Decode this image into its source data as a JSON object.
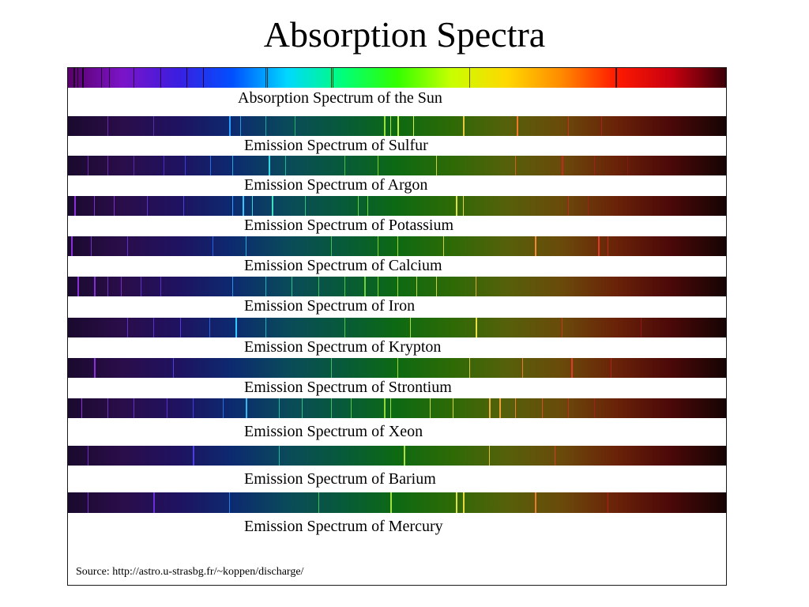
{
  "title": "Absorption Spectra",
  "source": "Source: http://astro.u-strasbg.fr/~koppen/discharge/",
  "palette": {
    "sun": [
      "#5a006a",
      "#7b14c8",
      "#3b1ee0",
      "#0050ff",
      "#00d8ff",
      "#00ff7a",
      "#32ff00",
      "#c8ff00",
      "#ffd800",
      "#ff8a00",
      "#ff1a00",
      "#c80010",
      "#3a0008"
    ],
    "emission": [
      "#1a0a2e",
      "#2a0d4a",
      "#1f1260",
      "#0c2a70",
      "#0a4a5a",
      "#075a3a",
      "#0d6a12",
      "#2e6a06",
      "#56600a",
      "#6a4a0a",
      "#6a2208",
      "#4a0808",
      "#160404"
    ]
  },
  "spectra": [
    {
      "label": "Absorption Spectrum of the Sun",
      "kind": "absorption",
      "lines": [
        {
          "pos": 0.008,
          "w": 2,
          "color": "#1a0020"
        },
        {
          "pos": 0.014,
          "w": 1,
          "color": "#1a0020"
        },
        {
          "pos": 0.022,
          "w": 2,
          "color": "#1a0020"
        },
        {
          "pos": 0.05,
          "w": 1,
          "color": "#2a0040"
        },
        {
          "pos": 0.062,
          "w": 1,
          "color": "#2a0040"
        },
        {
          "pos": 0.1,
          "w": 1,
          "color": "#2a0040"
        },
        {
          "pos": 0.14,
          "w": 1,
          "color": "#2a0040"
        },
        {
          "pos": 0.18,
          "w": 1,
          "color": "#2a0040"
        },
        {
          "pos": 0.205,
          "w": 1,
          "color": "#2a0040"
        },
        {
          "pos": 0.3,
          "w": 1,
          "color": "#003a40"
        },
        {
          "pos": 0.302,
          "w": 1,
          "color": "#003a40"
        },
        {
          "pos": 0.4,
          "w": 1,
          "color": "#0a4a0a"
        },
        {
          "pos": 0.402,
          "w": 1,
          "color": "#0a4a0a"
        },
        {
          "pos": 0.61,
          "w": 1,
          "color": "#6a5a00"
        },
        {
          "pos": 0.832,
          "w": 2,
          "color": "#3a0000"
        }
      ]
    },
    {
      "label": "Emission Spectrum of Sulfur",
      "kind": "emission",
      "lines": [
        {
          "pos": 0.06,
          "w": 1,
          "color": "#6a2aa8"
        },
        {
          "pos": 0.13,
          "w": 1,
          "color": "#5a2aa0"
        },
        {
          "pos": 0.245,
          "w": 2,
          "color": "#2aa0ff"
        },
        {
          "pos": 0.262,
          "w": 1,
          "color": "#2a9ad8"
        },
        {
          "pos": 0.3,
          "w": 1,
          "color": "#20a8a0"
        },
        {
          "pos": 0.345,
          "w": 1,
          "color": "#22b070"
        },
        {
          "pos": 0.48,
          "w": 2,
          "color": "#9ae03a"
        },
        {
          "pos": 0.49,
          "w": 1,
          "color": "#b4ea40"
        },
        {
          "pos": 0.5,
          "w": 2,
          "color": "#c8f040"
        },
        {
          "pos": 0.525,
          "w": 1,
          "color": "#d8f050"
        },
        {
          "pos": 0.6,
          "w": 2,
          "color": "#e8c840"
        },
        {
          "pos": 0.682,
          "w": 2,
          "color": "#f07a28"
        },
        {
          "pos": 0.76,
          "w": 1,
          "color": "#c83020"
        },
        {
          "pos": 0.81,
          "w": 1,
          "color": "#a82020"
        }
      ]
    },
    {
      "label": "Emission Spectrum of Argon",
      "kind": "emission",
      "lines": [
        {
          "pos": 0.03,
          "w": 1,
          "color": "#6a2aa8"
        },
        {
          "pos": 0.06,
          "w": 1,
          "color": "#6a2aa8"
        },
        {
          "pos": 0.1,
          "w": 1,
          "color": "#5a2aa0"
        },
        {
          "pos": 0.145,
          "w": 1,
          "color": "#4a30c0"
        },
        {
          "pos": 0.178,
          "w": 1,
          "color": "#3a40d0"
        },
        {
          "pos": 0.216,
          "w": 1,
          "color": "#2a70e0"
        },
        {
          "pos": 0.25,
          "w": 1,
          "color": "#20a8d8"
        },
        {
          "pos": 0.305,
          "w": 2,
          "color": "#30d8e8"
        },
        {
          "pos": 0.33,
          "w": 1,
          "color": "#20b890"
        },
        {
          "pos": 0.42,
          "w": 1,
          "color": "#48c040"
        },
        {
          "pos": 0.47,
          "w": 1,
          "color": "#80d030"
        },
        {
          "pos": 0.56,
          "w": 1,
          "color": "#d0d040"
        },
        {
          "pos": 0.68,
          "w": 1,
          "color": "#d06020"
        },
        {
          "pos": 0.75,
          "w": 2,
          "color": "#c02a20"
        },
        {
          "pos": 0.8,
          "w": 1,
          "color": "#a02020"
        },
        {
          "pos": 0.85,
          "w": 1,
          "color": "#801818"
        }
      ]
    },
    {
      "label": "Emission Spectrum of Potassium",
      "kind": "emission",
      "lines": [
        {
          "pos": 0.01,
          "w": 2,
          "color": "#8a30d8"
        },
        {
          "pos": 0.04,
          "w": 1,
          "color": "#7a30c8"
        },
        {
          "pos": 0.07,
          "w": 1,
          "color": "#7a30c8"
        },
        {
          "pos": 0.12,
          "w": 1,
          "color": "#6030d0"
        },
        {
          "pos": 0.175,
          "w": 1,
          "color": "#4a40d8"
        },
        {
          "pos": 0.25,
          "w": 1,
          "color": "#2aa0ff"
        },
        {
          "pos": 0.265,
          "w": 2,
          "color": "#30c8ff"
        },
        {
          "pos": 0.28,
          "w": 1,
          "color": "#30d8e0"
        },
        {
          "pos": 0.31,
          "w": 2,
          "color": "#3ae0c0"
        },
        {
          "pos": 0.36,
          "w": 1,
          "color": "#30c080"
        },
        {
          "pos": 0.44,
          "w": 1,
          "color": "#60d040"
        },
        {
          "pos": 0.455,
          "w": 1,
          "color": "#70d840"
        },
        {
          "pos": 0.59,
          "w": 2,
          "color": "#e0e040"
        },
        {
          "pos": 0.6,
          "w": 1,
          "color": "#e8d840"
        },
        {
          "pos": 0.76,
          "w": 1,
          "color": "#c02a20"
        },
        {
          "pos": 0.79,
          "w": 1,
          "color": "#a02020"
        }
      ]
    },
    {
      "label": "Emission Spectrum of Calcium",
      "kind": "emission",
      "lines": [
        {
          "pos": 0.005,
          "w": 2,
          "color": "#8a30d8"
        },
        {
          "pos": 0.035,
          "w": 1,
          "color": "#7030c0"
        },
        {
          "pos": 0.09,
          "w": 1,
          "color": "#6030c8"
        },
        {
          "pos": 0.22,
          "w": 1,
          "color": "#2a60e0"
        },
        {
          "pos": 0.27,
          "w": 1,
          "color": "#20a8e0"
        },
        {
          "pos": 0.4,
          "w": 1,
          "color": "#40c050"
        },
        {
          "pos": 0.47,
          "w": 1,
          "color": "#80d030"
        },
        {
          "pos": 0.5,
          "w": 1,
          "color": "#a0d838"
        },
        {
          "pos": 0.57,
          "w": 1,
          "color": "#d0d040"
        },
        {
          "pos": 0.71,
          "w": 2,
          "color": "#f08a30"
        },
        {
          "pos": 0.805,
          "w": 2,
          "color": "#e03a28"
        },
        {
          "pos": 0.82,
          "w": 1,
          "color": "#c02a20"
        }
      ]
    },
    {
      "label": "Emission Spectrum of Iron",
      "kind": "emission",
      "lines": [
        {
          "pos": 0.015,
          "w": 2,
          "color": "#8a30d8"
        },
        {
          "pos": 0.04,
          "w": 2,
          "color": "#8030d0"
        },
        {
          "pos": 0.06,
          "w": 1,
          "color": "#7030c0"
        },
        {
          "pos": 0.08,
          "w": 1,
          "color": "#7030c0"
        },
        {
          "pos": 0.11,
          "w": 1,
          "color": "#6030c8"
        },
        {
          "pos": 0.14,
          "w": 1,
          "color": "#5a30c8"
        },
        {
          "pos": 0.25,
          "w": 1,
          "color": "#2a90e0"
        },
        {
          "pos": 0.3,
          "w": 1,
          "color": "#20b0c0"
        },
        {
          "pos": 0.34,
          "w": 1,
          "color": "#30c090"
        },
        {
          "pos": 0.38,
          "w": 1,
          "color": "#40c060"
        },
        {
          "pos": 0.42,
          "w": 1,
          "color": "#50c840"
        },
        {
          "pos": 0.45,
          "w": 2,
          "color": "#70d040"
        },
        {
          "pos": 0.47,
          "w": 1,
          "color": "#80d830"
        },
        {
          "pos": 0.5,
          "w": 1,
          "color": "#a0d838"
        },
        {
          "pos": 0.53,
          "w": 1,
          "color": "#c0d840"
        },
        {
          "pos": 0.56,
          "w": 1,
          "color": "#d0d040"
        },
        {
          "pos": 0.62,
          "w": 1,
          "color": "#d8a838"
        }
      ]
    },
    {
      "label": "Emission Spectrum of Krypton",
      "kind": "emission",
      "lines": [
        {
          "pos": 0.09,
          "w": 1,
          "color": "#6030c8"
        },
        {
          "pos": 0.13,
          "w": 1,
          "color": "#5a30c8"
        },
        {
          "pos": 0.17,
          "w": 1,
          "color": "#4a40d8"
        },
        {
          "pos": 0.215,
          "w": 1,
          "color": "#3060e0"
        },
        {
          "pos": 0.255,
          "w": 2,
          "color": "#30c8ff"
        },
        {
          "pos": 0.3,
          "w": 1,
          "color": "#20b0c0"
        },
        {
          "pos": 0.42,
          "w": 1,
          "color": "#50c840"
        },
        {
          "pos": 0.52,
          "w": 1,
          "color": "#b0d840"
        },
        {
          "pos": 0.62,
          "w": 2,
          "color": "#e8e040"
        },
        {
          "pos": 0.75,
          "w": 1,
          "color": "#c03a20"
        },
        {
          "pos": 0.87,
          "w": 1,
          "color": "#901818"
        }
      ]
    },
    {
      "label": "Emission Spectrum of Strontium",
      "kind": "emission",
      "lines": [
        {
          "pos": 0.04,
          "w": 2,
          "color": "#8a30d8"
        },
        {
          "pos": 0.16,
          "w": 1,
          "color": "#4a40d8"
        },
        {
          "pos": 0.4,
          "w": 1,
          "color": "#40c060"
        },
        {
          "pos": 0.5,
          "w": 1,
          "color": "#a0d838"
        },
        {
          "pos": 0.61,
          "w": 1,
          "color": "#d8c840"
        },
        {
          "pos": 0.69,
          "w": 1,
          "color": "#e87a30"
        },
        {
          "pos": 0.765,
          "w": 2,
          "color": "#e03a28"
        },
        {
          "pos": 0.825,
          "w": 1,
          "color": "#b02020"
        }
      ]
    },
    {
      "label": "Emission Spectrum of Xeon",
      "kind": "emission",
      "lines": [
        {
          "pos": 0.02,
          "w": 1,
          "color": "#8a30d8"
        },
        {
          "pos": 0.06,
          "w": 1,
          "color": "#7030c0"
        },
        {
          "pos": 0.1,
          "w": 1,
          "color": "#6030c8"
        },
        {
          "pos": 0.15,
          "w": 1,
          "color": "#5a30c8"
        },
        {
          "pos": 0.19,
          "w": 1,
          "color": "#4040d8"
        },
        {
          "pos": 0.235,
          "w": 1,
          "color": "#2a70e0"
        },
        {
          "pos": 0.27,
          "w": 2,
          "color": "#30b8f0"
        },
        {
          "pos": 0.32,
          "w": 1,
          "color": "#20b8a0"
        },
        {
          "pos": 0.355,
          "w": 1,
          "color": "#30c080"
        },
        {
          "pos": 0.4,
          "w": 1,
          "color": "#40c060"
        },
        {
          "pos": 0.43,
          "w": 1,
          "color": "#58c840"
        },
        {
          "pos": 0.48,
          "w": 2,
          "color": "#90d838"
        },
        {
          "pos": 0.49,
          "w": 1,
          "color": "#a0e040"
        },
        {
          "pos": 0.55,
          "w": 1,
          "color": "#c8d840"
        },
        {
          "pos": 0.585,
          "w": 1,
          "color": "#d8d040"
        },
        {
          "pos": 0.64,
          "w": 2,
          "color": "#f0b040"
        },
        {
          "pos": 0.655,
          "w": 2,
          "color": "#f0a038"
        },
        {
          "pos": 0.68,
          "w": 1,
          "color": "#e88030"
        },
        {
          "pos": 0.72,
          "w": 1,
          "color": "#d05028"
        },
        {
          "pos": 0.76,
          "w": 1,
          "color": "#c03020"
        },
        {
          "pos": 0.8,
          "w": 1,
          "color": "#a02020"
        }
      ]
    },
    {
      "label": "Emission Spectrum of Barium",
      "kind": "emission",
      "lines": [
        {
          "pos": 0.03,
          "w": 1,
          "color": "#7030c0"
        },
        {
          "pos": 0.19,
          "w": 2,
          "color": "#4a40e0"
        },
        {
          "pos": 0.32,
          "w": 1,
          "color": "#20b8a0"
        },
        {
          "pos": 0.51,
          "w": 2,
          "color": "#b0e040"
        },
        {
          "pos": 0.64,
          "w": 1,
          "color": "#e0c040"
        },
        {
          "pos": 0.74,
          "w": 1,
          "color": "#d04028"
        }
      ]
    },
    {
      "label": "Emission Spectrum of Mercury",
      "kind": "emission",
      "lines": [
        {
          "pos": 0.03,
          "w": 1,
          "color": "#7030c0"
        },
        {
          "pos": 0.13,
          "w": 2,
          "color": "#6a30d8"
        },
        {
          "pos": 0.245,
          "w": 1,
          "color": "#2a80e0"
        },
        {
          "pos": 0.38,
          "w": 1,
          "color": "#40c060"
        },
        {
          "pos": 0.49,
          "w": 2,
          "color": "#a0e040"
        },
        {
          "pos": 0.59,
          "w": 2,
          "color": "#e0e040"
        },
        {
          "pos": 0.6,
          "w": 2,
          "color": "#e8d840"
        },
        {
          "pos": 0.71,
          "w": 2,
          "color": "#e87a30"
        },
        {
          "pos": 0.82,
          "w": 1,
          "color": "#b02020"
        }
      ]
    }
  ]
}
